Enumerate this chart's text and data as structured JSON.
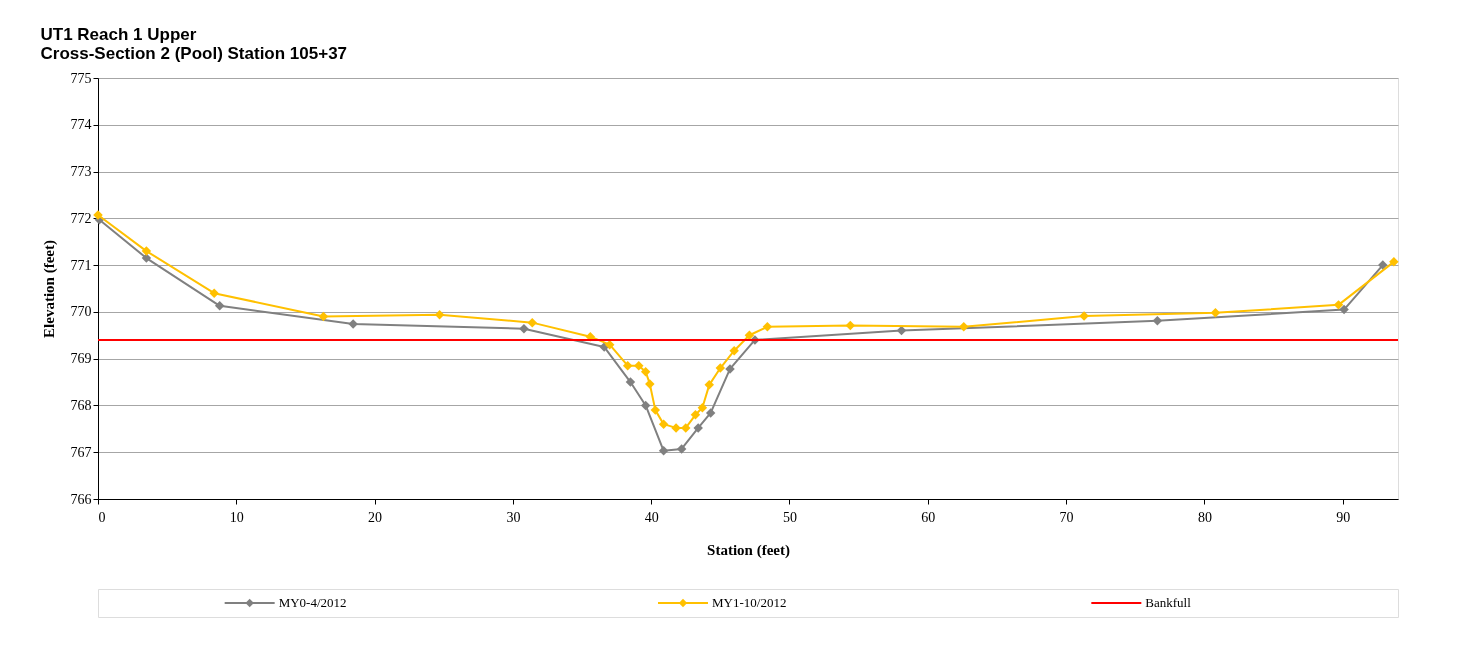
{
  "chart_data": {
    "type": "line",
    "title": [
      "UT1 Reach 1 Upper",
      "Cross-Section 2 (Pool) Station 105+37"
    ],
    "xlabel": "Station (feet)",
    "ylabel": "Elevation (feet)",
    "xlim": [
      0,
      94
    ],
    "xticks": [
      0,
      10,
      20,
      30,
      40,
      50,
      60,
      70,
      80,
      90
    ],
    "ylim": [
      766,
      775
    ],
    "yticks": [
      766,
      767,
      768,
      769,
      770,
      771,
      772,
      773,
      774,
      775
    ],
    "grid": "y",
    "legend": "bottom",
    "marker": "diamond",
    "line_style": "solid",
    "series": [
      {
        "name": "MY0-4/2012",
        "color": "#808080",
        "x": [
          0.1,
          3.5,
          8.8,
          18.45,
          30.8,
          36.6,
          38.5,
          39.6,
          40.9,
          42.2,
          43.4,
          44.3,
          45.7,
          47.5,
          58.1,
          76.6,
          90.1,
          92.9
        ],
        "values": [
          771.97,
          771.15,
          770.13,
          769.74,
          769.64,
          769.25,
          768.5,
          768.0,
          767.03,
          767.07,
          767.52,
          767.84,
          768.78,
          769.4,
          769.6,
          769.81,
          770.05,
          771.0
        ]
      },
      {
        "name": "MY1-10/2012",
        "color": "#ffc000",
        "x": [
          0,
          3.5,
          8.4,
          16.3,
          24.7,
          31.4,
          35.6,
          37.0,
          38.3,
          39.1,
          39.6,
          39.9,
          40.3,
          40.9,
          41.8,
          42.5,
          43.2,
          43.7,
          44.2,
          45.0,
          46.0,
          47.1,
          48.4,
          54.4,
          62.6,
          71.3,
          80.8,
          89.7,
          93.7
        ],
        "values": [
          772.07,
          771.3,
          770.4,
          769.9,
          769.94,
          769.77,
          769.47,
          769.3,
          768.85,
          768.85,
          768.72,
          768.46,
          767.9,
          767.6,
          767.52,
          767.52,
          767.8,
          767.95,
          768.44,
          768.8,
          769.17,
          769.5,
          769.68,
          769.71,
          769.68,
          769.91,
          769.98,
          770.15,
          771.07
        ]
      },
      {
        "name": "Bankfull",
        "color": "#ff0000",
        "marker": "none",
        "x": [
          0,
          94
        ],
        "values": [
          769.4,
          769.4
        ]
      }
    ]
  }
}
